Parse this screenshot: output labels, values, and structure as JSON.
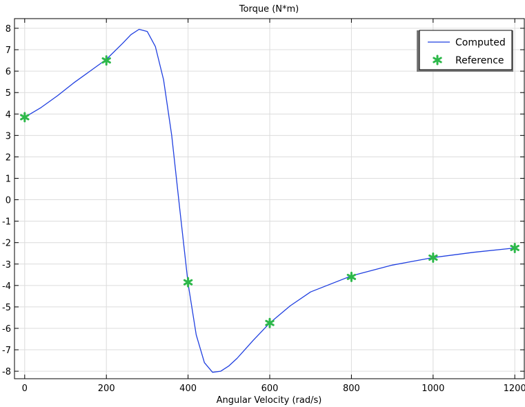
{
  "chart_data": {
    "type": "line",
    "title": "Torque (N*m)",
    "xlabel": "Angular Velocity (rad/s)",
    "ylabel": "",
    "xlim": [
      -25,
      1225
    ],
    "ylim": [
      -8.35,
      8.45
    ],
    "xticks": [
      0,
      200,
      400,
      600,
      800,
      1000,
      1200
    ],
    "yticks": [
      -8,
      -7,
      -6,
      -5,
      -4,
      -3,
      -2,
      -1,
      0,
      1,
      2,
      3,
      4,
      5,
      6,
      7,
      8
    ],
    "grid": true,
    "legend_position": "top-right",
    "series": [
      {
        "name": "Computed",
        "style": "line",
        "color": "#1f3fe0",
        "x": [
          0,
          40,
          80,
          120,
          160,
          200,
          240,
          260,
          280,
          300,
          320,
          340,
          360,
          380,
          400,
          420,
          440,
          460,
          480,
          500,
          520,
          560,
          600,
          650,
          700,
          800,
          900,
          1000,
          1100,
          1200
        ],
        "y": [
          3.85,
          4.3,
          4.85,
          5.45,
          6.0,
          6.55,
          7.3,
          7.7,
          7.95,
          7.85,
          7.15,
          5.6,
          3.0,
          -0.5,
          -3.9,
          -6.3,
          -7.6,
          -8.05,
          -8.0,
          -7.75,
          -7.4,
          -6.55,
          -5.75,
          -4.95,
          -4.3,
          -3.55,
          -3.05,
          -2.7,
          -2.45,
          -2.25
        ]
      },
      {
        "name": "Reference",
        "style": "marker",
        "color": "#2db84a",
        "x": [
          0,
          200,
          400,
          600,
          800,
          1000,
          1200
        ],
        "y": [
          3.85,
          6.5,
          -3.85,
          -5.75,
          -3.6,
          -2.7,
          -2.25
        ]
      }
    ]
  }
}
